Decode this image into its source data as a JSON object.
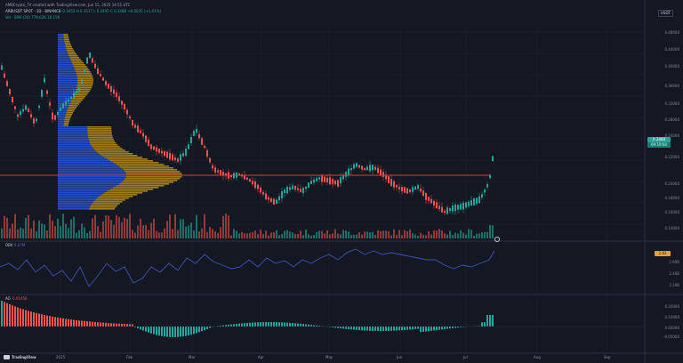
{
  "header": {
    "created_line": "AMBCrypto_TV created with TradingView.com, Jun 15, 2025 14:51 UTC",
    "symbol_line": "ARBUSDT SPOT · 1D · BINANCE",
    "ohlc": "O 0.3453 H 0.3517 L 0.3405 C 0.3488 +0.0035 (+1.01%)",
    "vol_line": "Vol · SMA (20)  776.62K  18.15K",
    "quote_currency": "USDT"
  },
  "price_axis": {
    "labels": [
      "0.48000",
      "0.44000",
      "0.40000",
      "0.36000",
      "0.32000",
      "0.28000",
      "0.24000",
      "0.22000",
      "0.20000",
      "0.18000",
      "0.16000",
      "0.14000"
    ],
    "last_price": "0.3488",
    "last_price_sub": "09:19:04"
  },
  "obv_panel": {
    "title": "OBV",
    "value": "6.07M",
    "axis_labels": [
      "2.60B",
      "2.40B",
      "2.20B"
    ],
    "tag": "2.83"
  },
  "ao_panel": {
    "title": "AO",
    "value": "0.01456",
    "axis_labels": [
      "0.20000",
      "0.10000",
      "0.00000",
      "-0.05000"
    ]
  },
  "time_axis": {
    "labels": [
      "2025",
      "Feb",
      "Mar",
      "Apr",
      "May",
      "Jun",
      "Jul",
      "Aug",
      "Sep"
    ]
  },
  "logo": "TradingView",
  "colors": {
    "up": "#26a69a",
    "down": "#ef5350",
    "profile_up": "#2962ff",
    "profile_down": "#d4a017",
    "resistance": "#e53935",
    "obv_line": "#3f51b5",
    "last_price_tag": "#26a69a"
  }
}
